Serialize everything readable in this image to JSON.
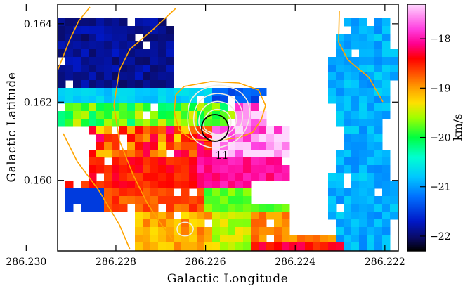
{
  "chart_data": {
    "type": "heatmap",
    "title": "",
    "xlabel": "Galactic Longitude",
    "ylabel": "Galactic Latitude",
    "xlim": [
      286.2293,
      286.2217
    ],
    "ylim": [
      0.1582,
      0.1645
    ],
    "x_ticks": [
      {
        "value": 286.23,
        "label": "286.230"
      },
      {
        "value": 286.228,
        "label": "286.228"
      },
      {
        "value": 286.226,
        "label": "286.226"
      },
      {
        "value": 286.224,
        "label": "286.224"
      },
      {
        "value": 286.222,
        "label": "286.222"
      }
    ],
    "y_ticks": [
      {
        "value": 0.164,
        "label": "0.164"
      },
      {
        "value": 0.162,
        "label": "0.162"
      },
      {
        "value": 0.16,
        "label": "0.160"
      }
    ],
    "colorbar": {
      "label": "km/s",
      "range": [
        -22.3,
        -17.3
      ],
      "ticks": [
        {
          "value": -18,
          "label": "−18"
        },
        {
          "value": -19,
          "label": "−19"
        },
        {
          "value": -20,
          "label": "−20"
        },
        {
          "value": -21,
          "label": "−21"
        },
        {
          "value": -22,
          "label": "−22"
        }
      ]
    },
    "annotations": [
      {
        "text": "11",
        "x": 286.2265,
        "y": 0.1605
      }
    ],
    "source_marker": {
      "x": 286.2265,
      "y": 0.1613,
      "shape": "circle",
      "radius_deg": 0.0004
    },
    "grid": false,
    "legend": "none"
  }
}
